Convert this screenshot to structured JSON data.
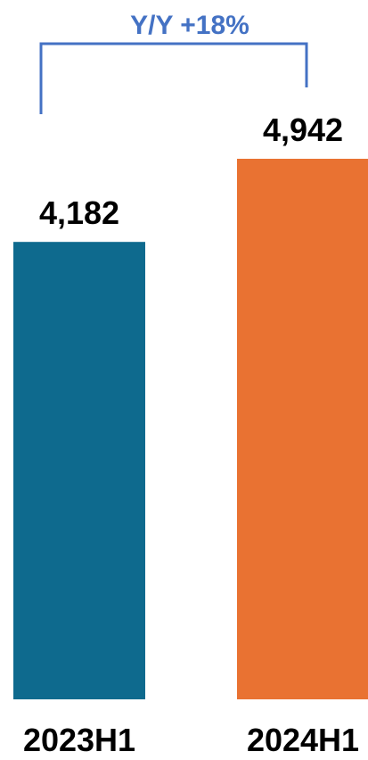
{
  "chart_data": {
    "type": "bar",
    "categories": [
      "2023H1",
      "2024H1"
    ],
    "values": [
      4182,
      4942
    ],
    "value_labels": [
      "4,182",
      "4,942"
    ],
    "colors": [
      "#0e6a8e",
      "#e97232"
    ],
    "annotation": {
      "text": "Y/Y +18%",
      "color": "#4472c4"
    },
    "title": "",
    "xlabel": "",
    "ylabel": "",
    "ylim": [
      0,
      4942
    ],
    "grid": false,
    "legend": "none"
  }
}
